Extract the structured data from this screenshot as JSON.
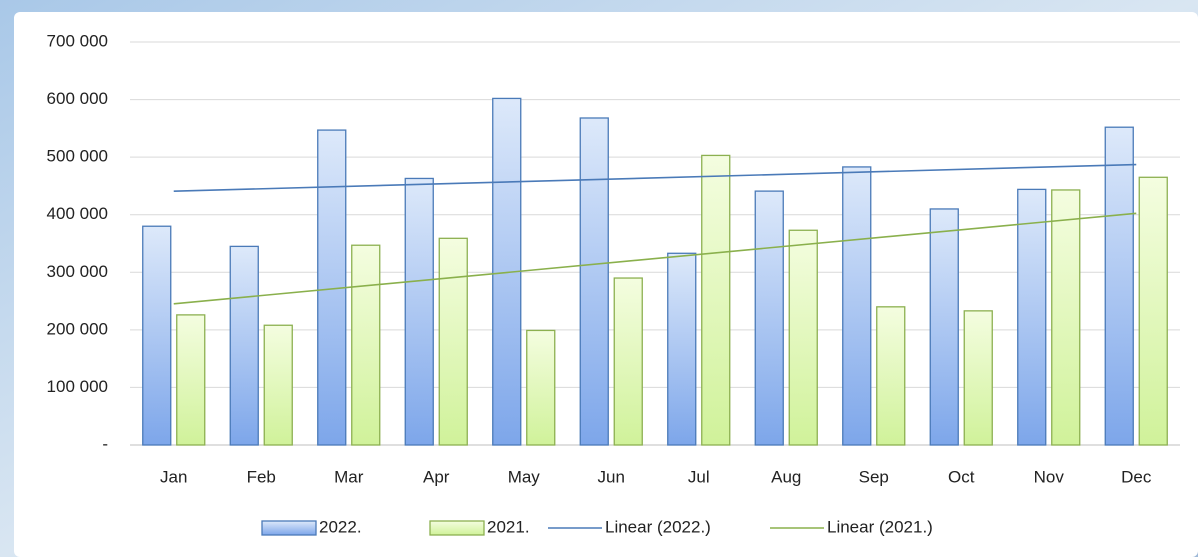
{
  "chart_data": {
    "type": "bar",
    "categories": [
      "Jan",
      "Feb",
      "Mar",
      "Apr",
      "May",
      "Jun",
      "Jul",
      "Aug",
      "Sep",
      "Oct",
      "Nov",
      "Dec"
    ],
    "series": [
      {
        "name": "2022.",
        "color": "#6f9be0",
        "values": [
          380000,
          345000,
          547000,
          463000,
          602000,
          568000,
          333000,
          441000,
          483000,
          410000,
          444000,
          552000
        ]
      },
      {
        "name": "2021.",
        "color": "#d4f3a0",
        "values": [
          226000,
          208000,
          347000,
          359000,
          199000,
          290000,
          503000,
          373000,
          240000,
          233000,
          443000,
          465000
        ]
      }
    ],
    "trendlines": [
      {
        "name": "Linear (2022.)",
        "series": 0,
        "color": "#4a7ab8"
      },
      {
        "name": "Linear (2021.)",
        "series": 1,
        "color": "#8ab04c"
      }
    ],
    "ylim": [
      0,
      700000
    ],
    "yticks": [
      {
        "value": 0,
        "label": "-"
      },
      {
        "value": 100000,
        "label": "100 000"
      },
      {
        "value": 200000,
        "label": "200 000"
      },
      {
        "value": 300000,
        "label": "300 000"
      },
      {
        "value": 400000,
        "label": "400 000"
      },
      {
        "value": 500000,
        "label": "500 000"
      },
      {
        "value": 600000,
        "label": "600 000"
      },
      {
        "value": 700000,
        "label": "700 000"
      }
    ],
    "grid": true,
    "legend": "bottom"
  }
}
